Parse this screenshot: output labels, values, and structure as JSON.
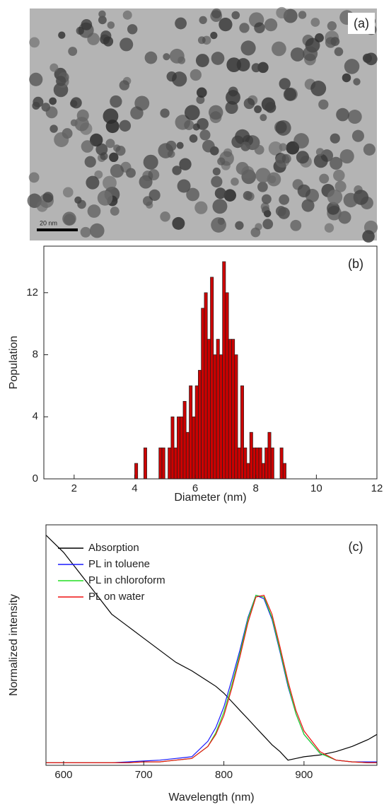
{
  "panel_a": {
    "label": "(a)",
    "scale_bar": "20 nm"
  },
  "chart_data": [
    {
      "type": "histogram",
      "label": "(b)",
      "x_label": "Diameter (nm)",
      "y_label": "Population",
      "color": "#cc0000",
      "bins": [
        4.0,
        4.1,
        4.2,
        4.3,
        4.4,
        4.5,
        4.6,
        4.7,
        4.8,
        4.9,
        5.0,
        5.1,
        5.2,
        5.3,
        5.4,
        5.5,
        5.6,
        5.7,
        5.8,
        5.9,
        6.0,
        6.1,
        6.2,
        6.3,
        6.4,
        6.5,
        6.6,
        6.7,
        6.8,
        6.9,
        7.0,
        7.1,
        7.2,
        7.3,
        7.4,
        7.5,
        7.6,
        7.7,
        7.8,
        7.9,
        8.0,
        8.1,
        8.2,
        8.3,
        8.4,
        8.5,
        8.6,
        8.7,
        8.8,
        8.9,
        9.0
      ],
      "values": [
        1,
        0,
        0,
        2,
        0,
        0,
        0,
        0,
        2,
        2,
        0,
        2,
        4,
        2,
        4,
        4,
        5,
        3,
        6,
        4,
        6,
        7,
        11,
        12,
        9,
        13,
        8,
        9,
        8,
        14,
        12,
        9,
        9,
        8,
        2,
        6,
        2,
        1,
        3,
        2,
        2,
        2,
        1,
        2,
        3,
        2,
        0,
        0,
        2,
        1
      ],
      "xlim": [
        1,
        12
      ],
      "xticks": [
        2,
        4,
        6,
        8,
        10,
        12
      ],
      "ylim": [
        0,
        15
      ],
      "yticks": [
        0,
        4,
        8,
        12
      ]
    },
    {
      "type": "line",
      "label": "(c)",
      "x_label": "Wavelength (nm)",
      "y_label": "Normalized intensity",
      "x": [
        578,
        600,
        620,
        640,
        660,
        680,
        700,
        720,
        740,
        760,
        780,
        790,
        800,
        810,
        820,
        830,
        840,
        850,
        860,
        870,
        880,
        890,
        900,
        920,
        940,
        960,
        980,
        991
      ],
      "series": [
        {
          "name": "Absorption",
          "color": "#000000",
          "values": [
            1.34,
            1.24,
            1.12,
            1.0,
            0.88,
            0.81,
            0.74,
            0.67,
            0.6,
            0.55,
            0.49,
            0.46,
            0.42,
            0.37,
            0.32,
            0.27,
            0.22,
            0.17,
            0.12,
            0.08,
            0.03,
            0.04,
            0.05,
            0.06,
            0.08,
            0.11,
            0.15,
            0.18
          ]
        },
        {
          "name": "PL in toluene",
          "color": "#1a1aff",
          "values": [
            0.015,
            0.015,
            0.015,
            0.015,
            0.015,
            0.02,
            0.025,
            0.03,
            0.04,
            0.05,
            0.14,
            0.22,
            0.34,
            0.5,
            0.67,
            0.86,
            0.99,
            0.97,
            0.85,
            0.66,
            0.46,
            0.3,
            0.18,
            0.07,
            0.03,
            0.02,
            0.02,
            0.02
          ]
        },
        {
          "name": "PL in chloroform",
          "color": "#22dd22",
          "values": [
            0.015,
            0.015,
            0.015,
            0.015,
            0.015,
            0.015,
            0.02,
            0.02,
            0.03,
            0.04,
            0.11,
            0.19,
            0.31,
            0.47,
            0.65,
            0.85,
            0.99,
            0.98,
            0.86,
            0.67,
            0.47,
            0.3,
            0.18,
            0.07,
            0.03,
            0.02,
            0.015,
            0.015
          ]
        },
        {
          "name": "PL on water",
          "color": "#ee1111",
          "values": [
            0.015,
            0.015,
            0.015,
            0.015,
            0.015,
            0.015,
            0.02,
            0.02,
            0.03,
            0.04,
            0.11,
            0.18,
            0.29,
            0.45,
            0.63,
            0.83,
            0.98,
            0.99,
            0.88,
            0.69,
            0.49,
            0.32,
            0.2,
            0.08,
            0.03,
            0.02,
            0.015,
            0.015
          ]
        }
      ],
      "xlim": [
        578,
        991
      ],
      "xticks": [
        600,
        700,
        800,
        900
      ],
      "ylim": [
        0,
        1.4
      ]
    }
  ]
}
